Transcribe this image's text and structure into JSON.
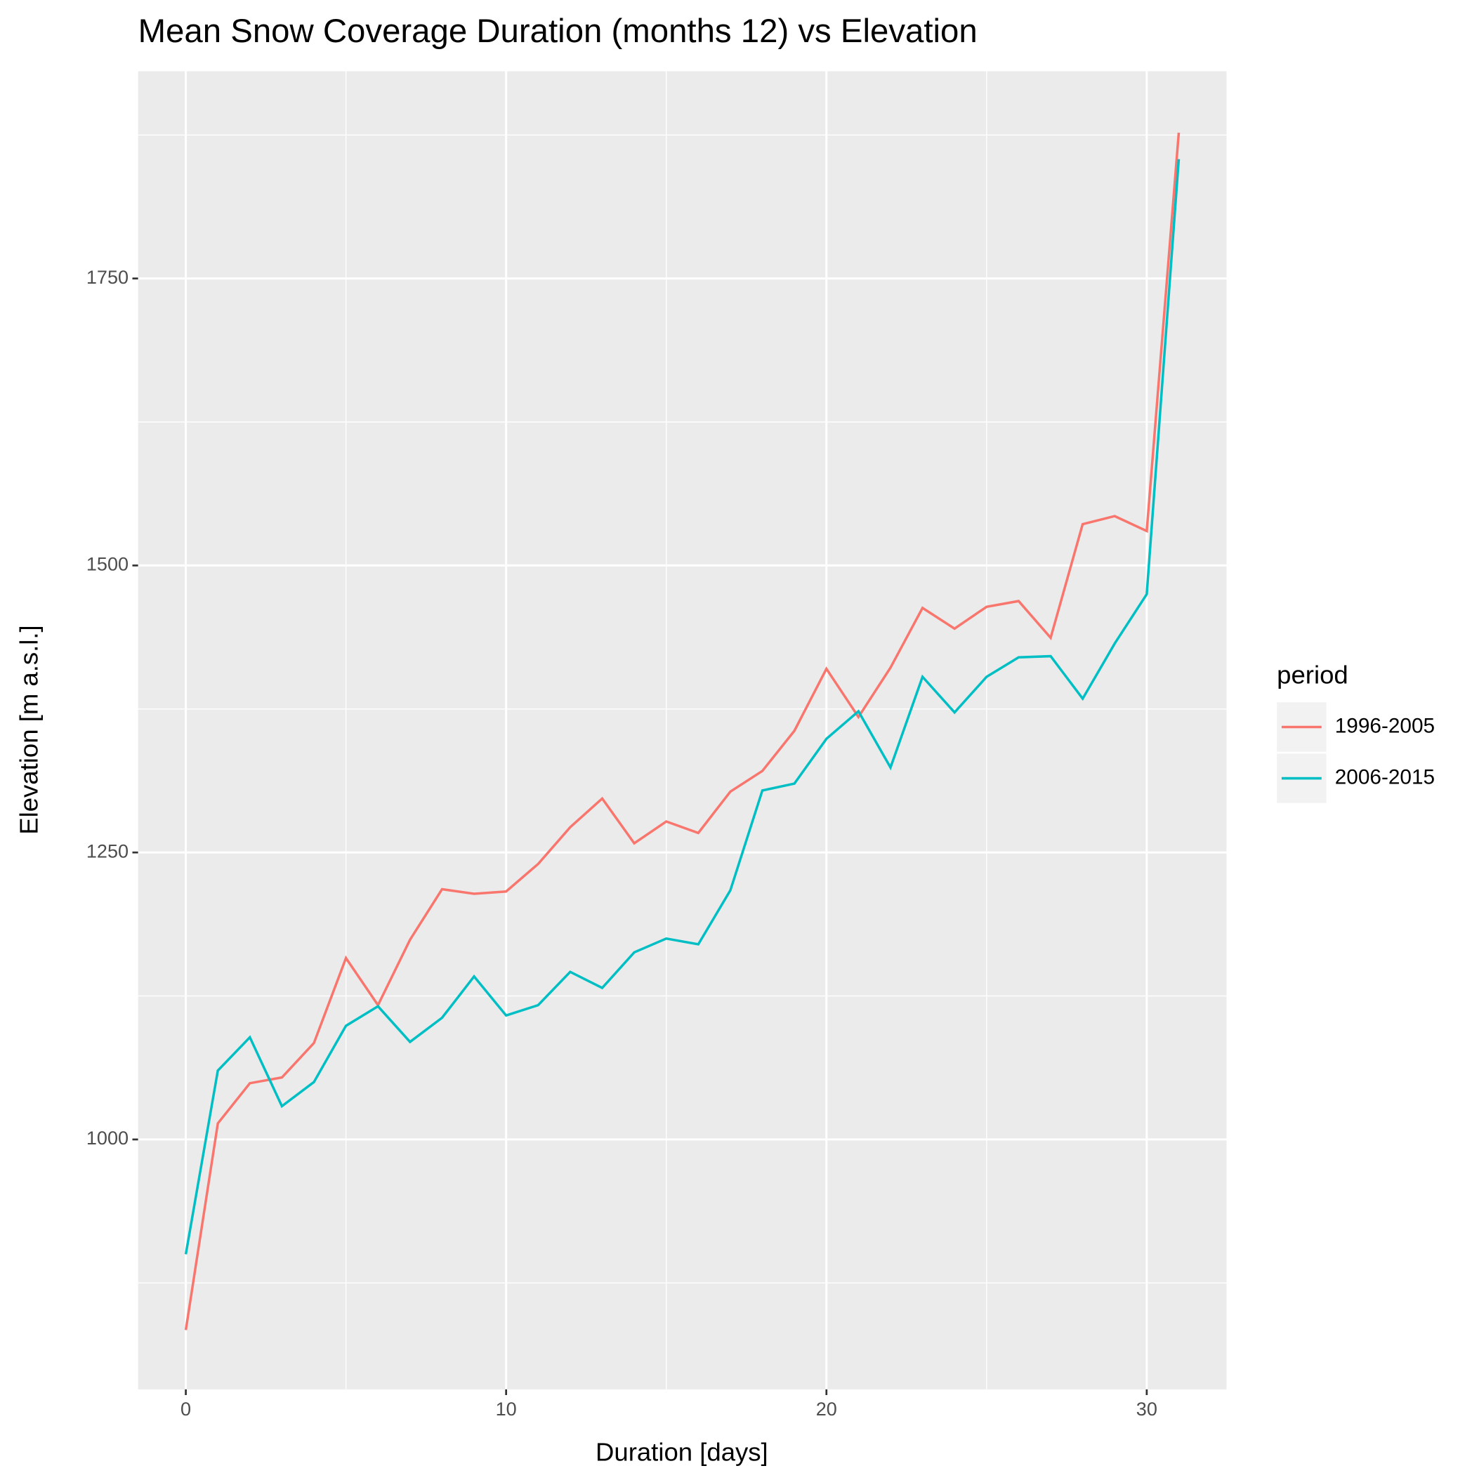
{
  "chart_data": {
    "type": "line",
    "title": "Mean Snow Coverage Duration (months 12) vs Elevation",
    "x_label": "Duration [days]",
    "y_label": "Elevation [m a.s.l.]",
    "legend_title": "period",
    "legend_position": "right",
    "grid": true,
    "x": [
      0,
      1,
      2,
      3,
      4,
      5,
      6,
      7,
      8,
      9,
      10,
      11,
      12,
      13,
      14,
      15,
      16,
      17,
      18,
      19,
      20,
      21,
      22,
      23,
      24,
      25,
      26,
      27,
      28,
      29,
      30,
      31
    ],
    "series": [
      {
        "name": "1996-2005",
        "color": "#f8766d",
        "values": [
          834,
          1014,
          1049,
          1054,
          1084,
          1158,
          1117,
          1174,
          1218,
          1214,
          1216,
          1240,
          1272,
          1297,
          1258,
          1277,
          1267,
          1303,
          1321,
          1356,
          1410,
          1368,
          1411,
          1463,
          1445,
          1464,
          1469,
          1437,
          1536,
          1543,
          1530,
          1877
        ]
      },
      {
        "name": "2006-2015",
        "color": "#00bfc4",
        "values": [
          900,
          1060,
          1089,
          1029,
          1050,
          1099,
          1116,
          1085,
          1106,
          1142,
          1108,
          1117,
          1146,
          1132,
          1163,
          1175,
          1170,
          1217,
          1304,
          1310,
          1349,
          1373,
          1324,
          1403,
          1372,
          1403,
          1420,
          1421,
          1384,
          1432,
          1475,
          1854
        ]
      }
    ],
    "xlim": [
      -1.49,
      32.49
    ],
    "xticks": [
      0,
      10,
      20,
      30
    ],
    "ylim": [
      782.3,
      1930.5
    ],
    "yticks": [
      1000,
      1250,
      1500,
      1750
    ]
  }
}
